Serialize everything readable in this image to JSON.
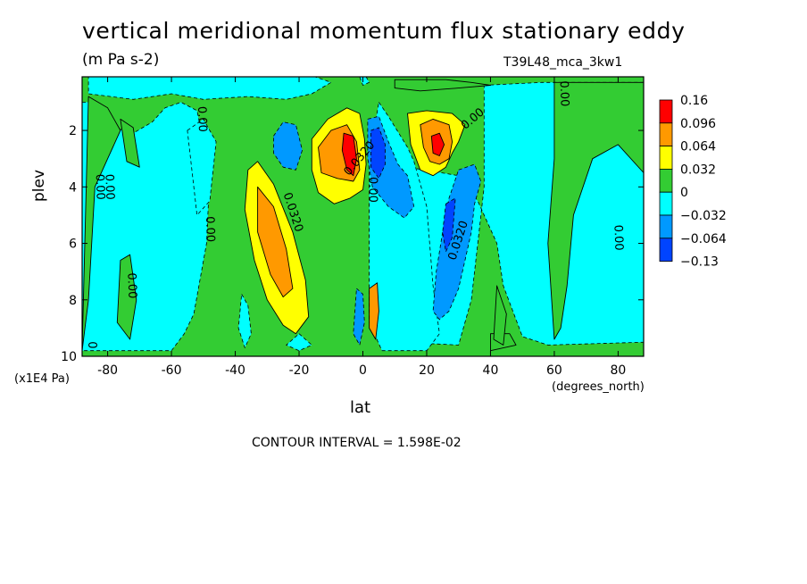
{
  "chart_data": {
    "type": "heatmap",
    "title": "vertical meridional momentum flux stationary eddy",
    "subtitle": "(m Pa s-2)",
    "run_label": "T39L48_mca_3kw1",
    "xlabel": "lat",
    "x_unit": "(degrees_north)",
    "ylabel": "plev",
    "y_unit": "(x1E4 Pa)",
    "footer": "CONTOUR INTERVAL = 1.598E-02",
    "xlim": [
      -88,
      88
    ],
    "ylim": [
      10,
      0.1
    ],
    "x_ticks": [
      "-80",
      "-60",
      "-40",
      "-20",
      "0",
      "20",
      "40",
      "60",
      "80"
    ],
    "x_tick_values": [
      -80,
      -60,
      -40,
      -20,
      0,
      20,
      40,
      60,
      80
    ],
    "y_ticks": [
      "2",
      "4",
      "6",
      "8",
      "10"
    ],
    "y_tick_values": [
      2,
      4,
      6,
      8,
      10
    ],
    "colorbar": {
      "labels": [
        "0.16",
        "0.096",
        "0.064",
        "0.032",
        "0",
        "−0.032",
        "−0.064",
        "−0.13"
      ],
      "colors": [
        "#ff0000",
        "#ff9900",
        "#ffff00",
        "#33cc33",
        "#00ffff",
        "#0099ff",
        "#0044ff"
      ]
    },
    "background_level_color": "#33cc33",
    "regions": [
      {
        "level": -0.032,
        "color": "#00ffff",
        "polygon": [
          [
            -88,
            1
          ],
          [
            -83,
            1
          ],
          [
            -78,
            1.9
          ],
          [
            -72,
            2.1
          ],
          [
            -66,
            1.7
          ],
          [
            -62,
            1.2
          ],
          [
            -57,
            1
          ],
          [
            -52,
            1.3
          ],
          [
            -48,
            3.5
          ],
          [
            -49,
            6
          ],
          [
            -53,
            8.5
          ],
          [
            -56,
            9.2
          ],
          [
            -60,
            9.8
          ],
          [
            -88,
            9.8
          ]
        ]
      },
      {
        "level": -0.032,
        "color": "#00ffff",
        "polygon": [
          [
            -86,
            0.1
          ],
          [
            -30,
            0.1
          ],
          [
            -15,
            0.1
          ],
          [
            -10,
            0.3
          ],
          [
            -16,
            0.7
          ],
          [
            -24,
            0.9
          ],
          [
            -36,
            0.8
          ],
          [
            -50,
            0.9
          ],
          [
            -60,
            0.7
          ],
          [
            -72,
            0.9
          ],
          [
            -86,
            0.7
          ]
        ]
      },
      {
        "level": -0.032,
        "color": "#00ffff",
        "polygon": [
          [
            38,
            0.4
          ],
          [
            56,
            0.3
          ],
          [
            60,
            0.3
          ],
          [
            88,
            0.3
          ],
          [
            88,
            9.5
          ],
          [
            58,
            9.6
          ],
          [
            50,
            9.3
          ],
          [
            44,
            7.5
          ],
          [
            42,
            6
          ],
          [
            36,
            4.5
          ],
          [
            30,
            3.6
          ],
          [
            14,
            3.3
          ],
          [
            6,
            3.8
          ],
          [
            4,
            6
          ],
          [
            6,
            8
          ],
          [
            12,
            9.5
          ],
          [
            30,
            9.6
          ],
          [
            34,
            8
          ],
          [
            36,
            6
          ],
          [
            38,
            4
          ]
        ]
      },
      {
        "level": -0.032,
        "color": "#00ffff",
        "polygon": [
          [
            5,
            1
          ],
          [
            8,
            1.5
          ],
          [
            14,
            2.6
          ],
          [
            16,
            3.1
          ],
          [
            20,
            4.7
          ],
          [
            22,
            7.5
          ],
          [
            24,
            9.2
          ],
          [
            20,
            9.8
          ],
          [
            6,
            9.8
          ],
          [
            2,
            8.8
          ],
          [
            2,
            5
          ],
          [
            2,
            3
          ]
        ]
      },
      {
        "level": 0.032,
        "color": "#33cc33",
        "polygon": [
          [
            10,
            0.2
          ],
          [
            26,
            0.2
          ],
          [
            34,
            0.3
          ],
          [
            40,
            0.4
          ],
          [
            30,
            0.5
          ],
          [
            18,
            0.6
          ],
          [
            10,
            0.5
          ]
        ]
      },
      {
        "level": 0.032,
        "color": "#33cc33",
        "polygon": [
          [
            -86,
            0.8
          ],
          [
            -80,
            1.2
          ],
          [
            -76,
            2
          ],
          [
            -80,
            3
          ],
          [
            -84,
            4
          ],
          [
            -86,
            8
          ],
          [
            -88,
            9.8
          ]
        ]
      },
      {
        "level": 0.032,
        "color": "#33cc33",
        "polygon": [
          [
            -76,
            1.6
          ],
          [
            -72,
            1.9
          ],
          [
            -70,
            3.3
          ],
          [
            -74,
            3.1
          ]
        ]
      },
      {
        "level": 0.032,
        "color": "#33cc33",
        "polygon": [
          [
            -76,
            6.6
          ],
          [
            -73,
            6.4
          ],
          [
            -71,
            8
          ],
          [
            -73,
            9.4
          ],
          [
            -77,
            8.8
          ]
        ]
      },
      {
        "level": 0.032,
        "color": "#33cc33",
        "polygon": [
          [
            60,
            0.3
          ],
          [
            72,
            0.3
          ],
          [
            88,
            0.3
          ],
          [
            88,
            3.5
          ],
          [
            80,
            2.5
          ],
          [
            72,
            3
          ],
          [
            66,
            5
          ],
          [
            64,
            7.5
          ],
          [
            62,
            9
          ],
          [
            60,
            9.4
          ],
          [
            58,
            6
          ],
          [
            60,
            3
          ]
        ]
      },
      {
        "level": 0.032,
        "color": "#33cc33",
        "polygon": [
          [
            40,
            9.2
          ],
          [
            46,
            9.2
          ],
          [
            48,
            9.6
          ],
          [
            40,
            9.8
          ]
        ]
      },
      {
        "level": 0.032,
        "color": "#33cc33",
        "polygon": [
          [
            42,
            7.5
          ],
          [
            45,
            8.5
          ],
          [
            44,
            9.6
          ],
          [
            41,
            9.4
          ]
        ]
      },
      {
        "level": -0.032,
        "color": "#00ffff",
        "polygon": [
          [
            -55,
            2
          ],
          [
            -50,
            1.6
          ],
          [
            -46,
            2.4
          ],
          [
            -48,
            4.5
          ],
          [
            -52,
            5
          ]
        ]
      },
      {
        "level": -0.032,
        "color": "#00ffff",
        "polygon": [
          [
            -38,
            7.8
          ],
          [
            -36,
            8.2
          ],
          [
            -35,
            9.2
          ],
          [
            -37,
            9.7
          ],
          [
            -39,
            9
          ]
        ]
      },
      {
        "level": -0.032,
        "color": "#00ffff",
        "polygon": [
          [
            -20,
            9.2
          ],
          [
            -16,
            9.6
          ],
          [
            -20,
            9.8
          ],
          [
            -24,
            9.6
          ]
        ]
      },
      {
        "level": 0.064,
        "color": "#ffff00",
        "polygon": [
          [
            -36,
            3.4
          ],
          [
            -33,
            3.1
          ],
          [
            -28,
            3.9
          ],
          [
            -22,
            5.6
          ],
          [
            -18,
            7.3
          ],
          [
            -17,
            8.6
          ],
          [
            -21,
            9.2
          ],
          [
            -25,
            8.9
          ],
          [
            -30,
            8
          ],
          [
            -34,
            6.6
          ],
          [
            -37,
            4.8
          ]
        ]
      },
      {
        "level": 0.096,
        "color": "#ff9900",
        "polygon": [
          [
            -33,
            4
          ],
          [
            -28,
            4.7
          ],
          [
            -24,
            6.2
          ],
          [
            -22,
            7.6
          ],
          [
            -25,
            7.9
          ],
          [
            -29,
            7.1
          ],
          [
            -33,
            5.6
          ]
        ]
      },
      {
        "level": 0.064,
        "color": "#ffff00",
        "polygon": [
          [
            -16,
            2.3
          ],
          [
            -11,
            1.6
          ],
          [
            -5,
            1.2
          ],
          [
            -1,
            1.4
          ],
          [
            0.5,
            2.3
          ],
          [
            1,
            3.2
          ],
          [
            0,
            4.1
          ],
          [
            -4,
            4.4
          ],
          [
            -9,
            4.6
          ],
          [
            -14,
            4.2
          ],
          [
            -16,
            3.4
          ]
        ]
      },
      {
        "level": 0.096,
        "color": "#ff9900",
        "polygon": [
          [
            -14,
            2.6
          ],
          [
            -10,
            2
          ],
          [
            -5,
            1.8
          ],
          [
            -2,
            2.4
          ],
          [
            -1,
            3.4
          ],
          [
            -3,
            3.8
          ],
          [
            -8,
            3.7
          ],
          [
            -13,
            3.5
          ]
        ]
      },
      {
        "level": 0.16,
        "color": "#ff0000",
        "polygon": [
          [
            -6,
            2.1
          ],
          [
            -3,
            2.2
          ],
          [
            -2,
            3
          ],
          [
            -3,
            3.6
          ],
          [
            -5,
            3.4
          ],
          [
            -6.5,
            2.7
          ]
        ]
      },
      {
        "level": -0.064,
        "color": "#0099ff",
        "polygon": [
          [
            -28,
            2.2
          ],
          [
            -25,
            1.7
          ],
          [
            -21,
            1.8
          ],
          [
            -19,
            2.7
          ],
          [
            -21,
            3.4
          ],
          [
            -25,
            3.3
          ],
          [
            -28,
            2.8
          ]
        ]
      },
      {
        "level": -0.064,
        "color": "#0099ff",
        "polygon": [
          [
            1.5,
            1.6
          ],
          [
            5,
            1.5
          ],
          [
            8,
            2.4
          ],
          [
            11,
            3.2
          ],
          [
            14,
            3.6
          ],
          [
            16,
            4.7
          ],
          [
            13,
            5.1
          ],
          [
            8,
            4.7
          ],
          [
            3,
            4
          ],
          [
            1.5,
            3
          ]
        ]
      },
      {
        "level": -0.13,
        "color": "#0044ff",
        "polygon": [
          [
            2.5,
            2
          ],
          [
            5,
            1.9
          ],
          [
            7,
            2.5
          ],
          [
            7,
            3.2
          ],
          [
            5,
            3.7
          ],
          [
            2.5,
            3.3
          ]
        ]
      },
      {
        "level": 0.064,
        "color": "#ffff00",
        "polygon": [
          [
            14,
            1.4
          ],
          [
            20,
            1.3
          ],
          [
            28,
            1.4
          ],
          [
            32,
            1.8
          ],
          [
            30,
            2.4
          ],
          [
            28,
            2.8
          ],
          [
            26,
            3.3
          ],
          [
            22,
            3.6
          ],
          [
            18,
            3.4
          ],
          [
            15,
            2.5
          ]
        ]
      },
      {
        "level": 0.096,
        "color": "#ff9900",
        "polygon": [
          [
            18,
            1.8
          ],
          [
            22,
            1.6
          ],
          [
            27,
            1.8
          ],
          [
            28,
            2.4
          ],
          [
            27,
            3
          ],
          [
            24,
            3.2
          ],
          [
            21,
            3.1
          ],
          [
            19,
            2.6
          ]
        ]
      },
      {
        "level": 0.16,
        "color": "#ff0000",
        "polygon": [
          [
            21.5,
            2.2
          ],
          [
            24,
            2.1
          ],
          [
            25.5,
            2.5
          ],
          [
            24,
            2.9
          ],
          [
            22,
            2.8
          ]
        ]
      },
      {
        "level": -0.064,
        "color": "#0099ff",
        "polygon": [
          [
            30,
            3.4
          ],
          [
            35,
            3.2
          ],
          [
            37,
            3.8
          ],
          [
            35,
            4.6
          ],
          [
            34,
            5.6
          ],
          [
            32,
            6.6
          ],
          [
            30,
            7.6
          ],
          [
            27,
            8.4
          ],
          [
            24,
            8.7
          ],
          [
            22,
            8.4
          ],
          [
            23,
            7
          ],
          [
            25,
            5.6
          ],
          [
            27,
            4.4
          ]
        ]
      },
      {
        "level": -0.13,
        "color": "#0044ff",
        "polygon": [
          [
            26,
            4.6
          ],
          [
            29,
            4.4
          ],
          [
            28,
            5.8
          ],
          [
            26,
            6.3
          ],
          [
            25,
            5.6
          ]
        ]
      },
      {
        "level": -0.064,
        "color": "#0099ff",
        "polygon": [
          [
            -2,
            7.6
          ],
          [
            0,
            7.8
          ],
          [
            0.5,
            8.8
          ],
          [
            -1,
            9.6
          ],
          [
            -3,
            9.2
          ]
        ]
      },
      {
        "level": 0.096,
        "color": "#ff9900",
        "polygon": [
          [
            2,
            7.6
          ],
          [
            4.5,
            7.4
          ],
          [
            5,
            8.4
          ],
          [
            4,
            9.4
          ],
          [
            2,
            9
          ]
        ]
      },
      {
        "level": -0.032,
        "color": "#00ffff",
        "polygon": [
          [
            -1,
            0.1
          ],
          [
            1,
            0.1
          ],
          [
            2,
            0.3
          ],
          [
            0,
            0.4
          ]
        ]
      }
    ],
    "contour_labels": [
      {
        "text": "0.00",
        "x": -50.5,
        "y": 1.6,
        "angle": 88
      },
      {
        "text": "0.00",
        "x": -82.5,
        "y": 4,
        "angle": 88
      },
      {
        "text": "0.00",
        "x": -79.5,
        "y": 4,
        "angle": 88
      },
      {
        "text": "0.00",
        "x": -48,
        "y": 5.5,
        "angle": 88
      },
      {
        "text": "0.00",
        "x": -72.5,
        "y": 7.5,
        "angle": 88
      },
      {
        "text": "0.0320",
        "x": -22,
        "y": 4.9,
        "angle": 72
      },
      {
        "text": "0.0320",
        "x": -1,
        "y": 3,
        "angle": -50
      },
      {
        "text": "0.00",
        "x": 3,
        "y": 4.1,
        "angle": 90
      },
      {
        "text": "0.00",
        "x": 34.5,
        "y": 1.6,
        "angle": -40
      },
      {
        "text": "0.0320",
        "x": 30,
        "y": 5.9,
        "angle": -72
      },
      {
        "text": "0.00",
        "x": 63,
        "y": 0.7,
        "angle": 88
      },
      {
        "text": "0.00",
        "x": 80,
        "y": 5.8,
        "angle": 88
      },
      {
        "text": "0",
        "x": -85,
        "y": 9.6,
        "angle": 90
      }
    ],
    "grid": false
  }
}
